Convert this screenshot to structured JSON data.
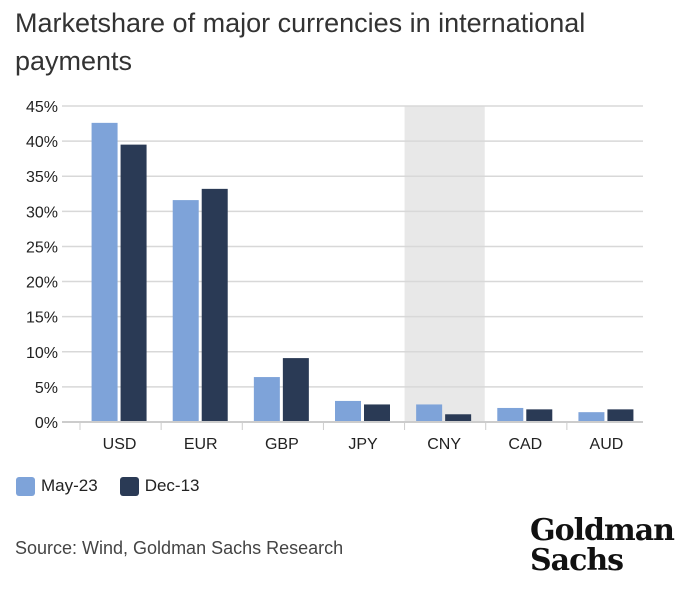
{
  "chart_data": {
    "type": "bar",
    "title": "Marketshare of major currencies in international payments",
    "categories": [
      "USD",
      "EUR",
      "GBP",
      "JPY",
      "CNY",
      "CAD",
      "AUD"
    ],
    "series": [
      {
        "name": "May-23",
        "color": "#7ea3d9",
        "values": [
          42.6,
          31.6,
          6.4,
          3.0,
          2.5,
          2.0,
          1.4
        ]
      },
      {
        "name": "Dec-13",
        "color": "#2a3a55",
        "values": [
          39.5,
          33.2,
          9.1,
          2.5,
          1.1,
          1.8,
          1.8
        ]
      }
    ],
    "highlighted_category": "CNY",
    "ylim": [
      0,
      45
    ],
    "yticks": [
      "0%",
      "5%",
      "10%",
      "15%",
      "20%",
      "25%",
      "30%",
      "35%",
      "40%",
      "45%"
    ],
    "grid": true,
    "legend": "bottom-left"
  },
  "source": "Source: Wind, Goldman Sachs Research",
  "logo": {
    "line1": "Goldman",
    "line2": "Sachs"
  }
}
